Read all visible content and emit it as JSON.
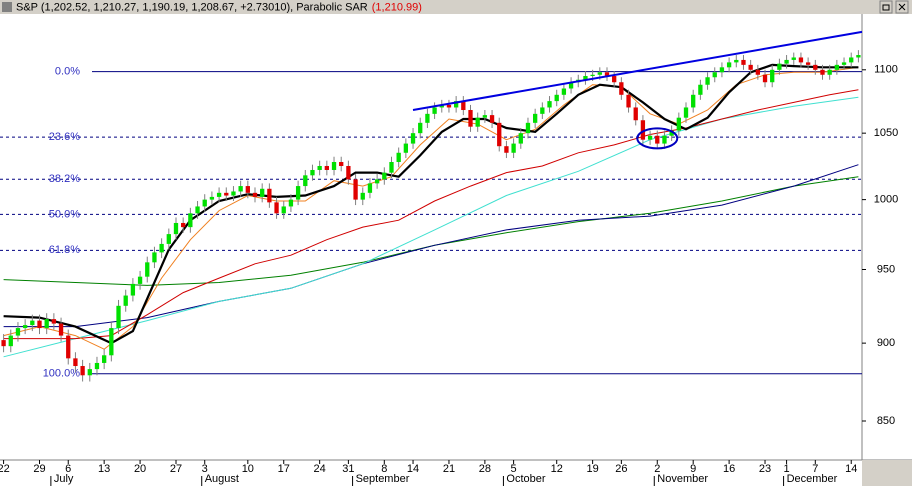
{
  "chart_data": {
    "type": "candlestick",
    "title": "S&P (1,202.52, 1,210.27, 1,190.19, 1,208.67, +2.73010), Parabolic SAR",
    "title_value": "(1,210.99)",
    "log_scale": true,
    "ylim": [
      826,
      1146
    ],
    "yticks": [
      850,
      900,
      950,
      1000,
      1050,
      1100
    ],
    "xlim": [
      -0.5,
      119.5
    ],
    "xticks": [
      {
        "value": 0,
        "label": "22"
      },
      {
        "value": 5,
        "label": "29"
      },
      {
        "value": 9,
        "label": "6"
      },
      {
        "value": 14,
        "label": "13"
      },
      {
        "value": 19,
        "label": "20"
      },
      {
        "value": 24,
        "label": "27"
      },
      {
        "value": 28,
        "label": "3"
      },
      {
        "value": 34,
        "label": "10"
      },
      {
        "value": 39,
        "label": "17"
      },
      {
        "value": 44,
        "label": "24"
      },
      {
        "value": 48,
        "label": "31"
      },
      {
        "value": 53,
        "label": "8"
      },
      {
        "value": 57,
        "label": "14"
      },
      {
        "value": 62,
        "label": "21"
      },
      {
        "value": 67,
        "label": "28"
      },
      {
        "value": 71,
        "label": "5"
      },
      {
        "value": 77,
        "label": "12"
      },
      {
        "value": 82,
        "label": "19"
      },
      {
        "value": 86,
        "label": "26"
      },
      {
        "value": 91,
        "label": "2"
      },
      {
        "value": 96,
        "label": "9"
      },
      {
        "value": 101,
        "label": "16"
      },
      {
        "value": 106,
        "label": "23"
      },
      {
        "value": 109,
        "label": "1"
      },
      {
        "value": 113,
        "label": "7"
      },
      {
        "value": 118,
        "label": "14"
      }
    ],
    "months": [
      {
        "value": 7,
        "label": "July"
      },
      {
        "value": 28,
        "label": "August"
      },
      {
        "value": 49,
        "label": "September"
      },
      {
        "value": 70,
        "label": "October"
      },
      {
        "value": 91,
        "label": "November"
      },
      {
        "value": 109,
        "label": "December"
      }
    ],
    "up_color": "#00e000",
    "down_color": "#e00000",
    "open": [
      902,
      898,
      905,
      910,
      912,
      915,
      910,
      916,
      913,
      905,
      890,
      885,
      879,
      883,
      887,
      892,
      910,
      925,
      932,
      940,
      945,
      955,
      962,
      968,
      975,
      983,
      980,
      990,
      995,
      1000,
      1002,
      1005,
      1003,
      1006,
      1010,
      1005,
      1002,
      1008,
      998,
      990,
      995,
      1000,
      1010,
      1018,
      1022,
      1025,
      1022,
      1028,
      1025,
      1015,
      1000,
      1005,
      1012,
      1015,
      1020,
      1028,
      1035,
      1042,
      1050,
      1058,
      1065,
      1070,
      1072,
      1070,
      1075,
      1068,
      1055,
      1062,
      1064,
      1058,
      1040,
      1035,
      1042,
      1050,
      1058,
      1065,
      1070,
      1075,
      1080,
      1085,
      1090,
      1092,
      1095,
      1096,
      1098,
      1095,
      1090,
      1080,
      1070,
      1060,
      1045,
      1048,
      1042,
      1048,
      1052,
      1062,
      1070,
      1080,
      1088,
      1094,
      1098,
      1102,
      1106,
      1108,
      1104,
      1100,
      1096,
      1090,
      1100,
      1105,
      1108,
      1110,
      1106,
      1104,
      1100,
      1096,
      1100,
      1104,
      1106,
      1110
    ],
    "high": [
      906,
      909,
      914,
      916,
      919,
      919,
      920,
      920,
      917,
      909,
      894,
      889,
      887,
      891,
      896,
      914,
      929,
      936,
      944,
      949,
      959,
      966,
      972,
      979,
      987,
      987,
      994,
      999,
      1004,
      1006,
      1009,
      1009,
      1010,
      1014,
      1014,
      1009,
      1012,
      1012,
      1002,
      999,
      1004,
      1014,
      1022,
      1026,
      1029,
      1029,
      1032,
      1032,
      1029,
      1019,
      1009,
      1016,
      1019,
      1024,
      1032,
      1039,
      1046,
      1054,
      1062,
      1069,
      1074,
      1076,
      1076,
      1079,
      1079,
      1072,
      1066,
      1068,
      1068,
      1062,
      1044,
      1046,
      1054,
      1062,
      1069,
      1074,
      1079,
      1084,
      1089,
      1094,
      1096,
      1099,
      1100,
      1102,
      1102,
      1099,
      1094,
      1084,
      1074,
      1064,
      1052,
      1052,
      1052,
      1056,
      1066,
      1074,
      1084,
      1092,
      1098,
      1102,
      1106,
      1110,
      1112,
      1112,
      1108,
      1104,
      1100,
      1104,
      1109,
      1112,
      1114,
      1114,
      1110,
      1108,
      1104,
      1104,
      1108,
      1110,
      1114,
      1116
    ],
    "low": [
      894,
      894,
      901,
      906,
      908,
      906,
      906,
      909,
      901,
      886,
      881,
      875,
      875,
      879,
      883,
      888,
      906,
      921,
      928,
      936,
      941,
      951,
      958,
      964,
      971,
      976,
      976,
      986,
      991,
      996,
      998,
      999,
      999,
      1002,
      1001,
      998,
      998,
      994,
      986,
      986,
      991,
      996,
      1006,
      1014,
      1018,
      1018,
      1018,
      1021,
      1011,
      996,
      996,
      1001,
      1008,
      1011,
      1016,
      1024,
      1031,
      1038,
      1046,
      1054,
      1061,
      1066,
      1066,
      1066,
      1064,
      1051,
      1051,
      1058,
      1054,
      1036,
      1031,
      1031,
      1038,
      1046,
      1054,
      1061,
      1066,
      1071,
      1076,
      1081,
      1086,
      1088,
      1091,
      1092,
      1091,
      1086,
      1076,
      1066,
      1056,
      1041,
      1041,
      1038,
      1038,
      1044,
      1048,
      1058,
      1066,
      1076,
      1084,
      1090,
      1094,
      1098,
      1102,
      1100,
      1096,
      1092,
      1086,
      1086,
      1096,
      1101,
      1104,
      1102,
      1100,
      1096,
      1092,
      1092,
      1096,
      1100,
      1102,
      1106
    ],
    "close": [
      898,
      905,
      910,
      912,
      915,
      910,
      916,
      913,
      905,
      890,
      885,
      879,
      883,
      887,
      892,
      910,
      925,
      932,
      940,
      945,
      955,
      962,
      968,
      975,
      983,
      980,
      990,
      995,
      1000,
      1002,
      1005,
      1003,
      1006,
      1010,
      1005,
      1002,
      1008,
      998,
      990,
      995,
      1000,
      1010,
      1018,
      1022,
      1025,
      1022,
      1028,
      1025,
      1015,
      1000,
      1005,
      1012,
      1015,
      1020,
      1028,
      1035,
      1042,
      1050,
      1058,
      1065,
      1070,
      1072,
      1070,
      1075,
      1068,
      1055,
      1062,
      1064,
      1058,
      1040,
      1035,
      1042,
      1050,
      1058,
      1065,
      1070,
      1075,
      1080,
      1085,
      1090,
      1092,
      1095,
      1096,
      1098,
      1095,
      1090,
      1080,
      1070,
      1060,
      1045,
      1048,
      1042,
      1048,
      1052,
      1062,
      1070,
      1080,
      1088,
      1094,
      1098,
      1102,
      1106,
      1108,
      1104,
      1100,
      1096,
      1090,
      1100,
      1105,
      1108,
      1110,
      1106,
      1104,
      1100,
      1096,
      1100,
      1104,
      1106,
      1110,
      1112
    ],
    "series": [
      {
        "color": "#008000",
        "x": [
          0,
          10,
          20,
          30,
          40,
          50,
          60,
          70,
          80,
          90,
          100,
          110,
          119
        ],
        "values": [
          943,
          941,
          939,
          941,
          946,
          955,
          967,
          976,
          984,
          990,
          999,
          1010,
          1017
        ]
      },
      {
        "color": "#000080",
        "x": [
          0,
          10,
          20,
          30,
          40,
          50,
          60,
          70,
          80,
          90,
          100,
          110,
          119
        ],
        "values": [
          911,
          911,
          917,
          928,
          937,
          954,
          967,
          978,
          985,
          988,
          996,
          1010,
          1026
        ]
      },
      {
        "color": "#40e0d0",
        "x": [
          0,
          10,
          20,
          30,
          40,
          50,
          60,
          70,
          80,
          90,
          100,
          110,
          119
        ],
        "values": [
          891,
          903,
          915,
          928,
          937,
          954,
          978,
          1003,
          1021,
          1045,
          1061,
          1071,
          1078
        ]
      },
      {
        "color": "#d00000",
        "x": [
          0,
          10,
          15,
          20,
          25,
          30,
          35,
          40,
          45,
          50,
          55,
          60,
          65,
          70,
          75,
          80,
          85,
          90,
          95,
          100,
          105,
          110,
          115,
          119
        ],
        "values": [
          903,
          903,
          905,
          919,
          934,
          944,
          954,
          960,
          971,
          980,
          985,
          999,
          1010,
          1020,
          1025,
          1035,
          1041,
          1049,
          1054,
          1061,
          1068,
          1074,
          1080,
          1084
        ]
      },
      {
        "color": "#f08020",
        "x": [
          0,
          5,
          10,
          14,
          18,
          22,
          26,
          30,
          34,
          38,
          42,
          46,
          50,
          54,
          58,
          62,
          66,
          70,
          74,
          78,
          82,
          86,
          90,
          94,
          98,
          102,
          106,
          110,
          114,
          119
        ],
        "values": [
          905,
          911,
          905,
          896,
          911,
          944,
          971,
          992,
          1003,
          999,
          999,
          1014,
          1010,
          1017,
          1041,
          1061,
          1057,
          1045,
          1053,
          1072,
          1088,
          1086,
          1065,
          1057,
          1068,
          1088,
          1096,
          1098,
          1098,
          1102
        ]
      },
      {
        "color": "#000000",
        "x": [
          0,
          5,
          10,
          15,
          18,
          20,
          23,
          26,
          30,
          34,
          38,
          42,
          46,
          49,
          52,
          55,
          58,
          61,
          64,
          67,
          70,
          74,
          77,
          80,
          83,
          86,
          89,
          92,
          95,
          98,
          101,
          104,
          107,
          110,
          114,
          119
        ],
        "values": [
          918,
          917,
          911,
          900,
          908,
          930,
          964,
          985,
          999,
          1004,
          1002,
          1003,
          1010,
          1020,
          1020,
          1017,
          1033,
          1051,
          1061,
          1061,
          1054,
          1051,
          1065,
          1080,
          1088,
          1086,
          1074,
          1061,
          1053,
          1062,
          1082,
          1098,
          1104,
          1103,
          1102,
          1102
        ]
      }
    ],
    "trendline": {
      "color": "#0000e0",
      "x": [
        57,
        119.5
      ],
      "values": [
        1068,
        1131
      ]
    },
    "fibonacci": {
      "high": 1098.5,
      "low": 880,
      "levels": [
        0,
        23.6,
        38.2,
        50,
        61.8,
        100
      ],
      "value_labels": [
        "0.0%",
        "23.6%",
        "38.2%",
        "50.0%",
        "61.8%",
        "100.0%"
      ]
    }
  }
}
